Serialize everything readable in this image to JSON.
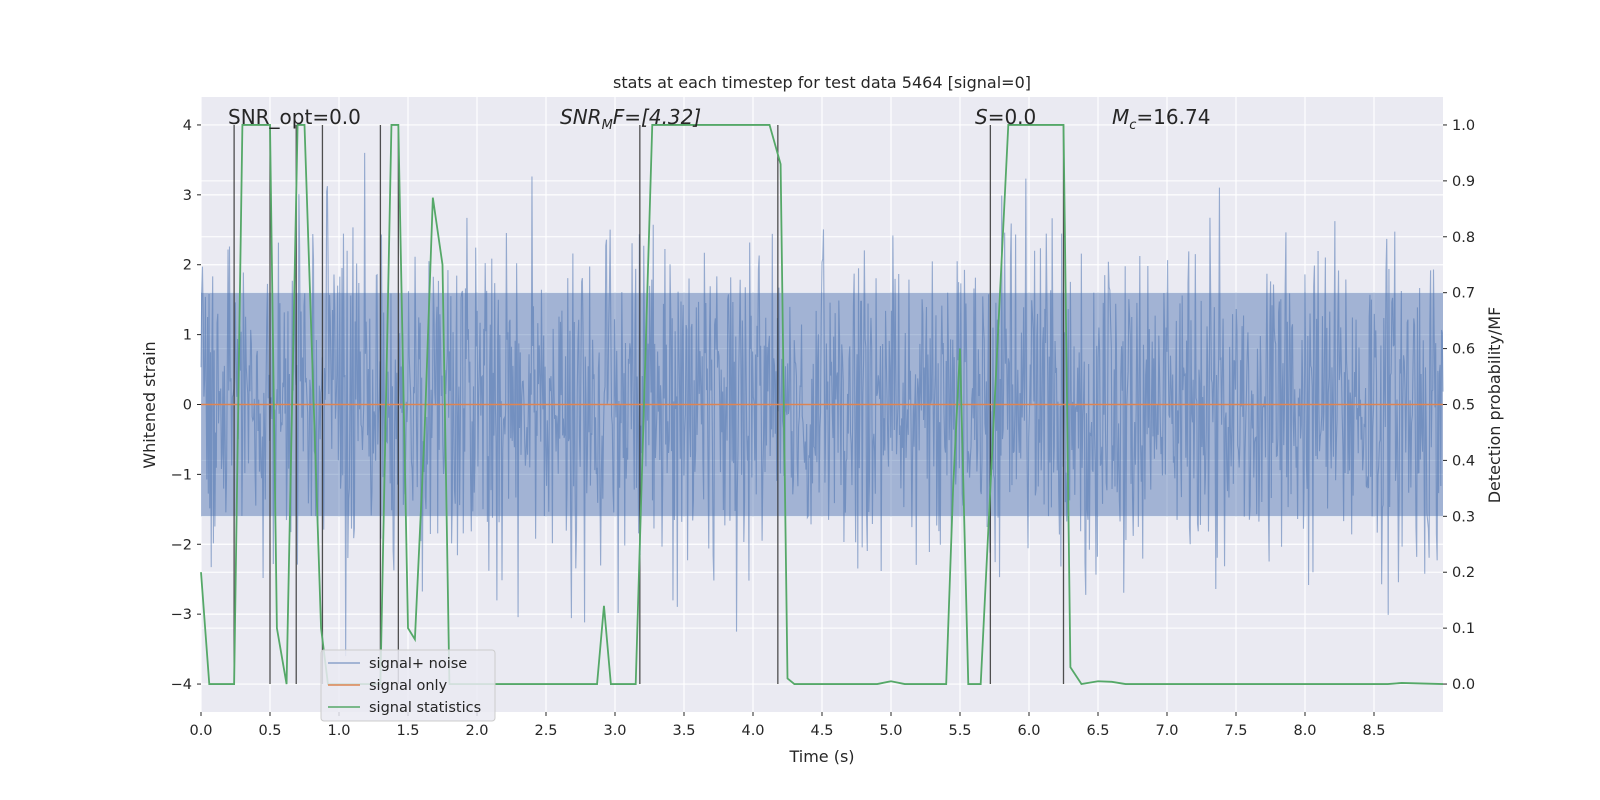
{
  "chart_data": {
    "type": "line",
    "title": "stats at each timestep for test data 5464 [signal=0]",
    "xlabel": "Time (s)",
    "ylabel": "Whitened strain",
    "y2label": "Detection probability/MF",
    "xlim": [
      0,
      9
    ],
    "ylim": [
      -4.4,
      4.4
    ],
    "y2lim": [
      -0.05,
      1.05
    ],
    "xticks": [
      "0.0",
      "0.5",
      "1.0",
      "1.5",
      "2.0",
      "2.5",
      "3.0",
      "3.5",
      "4.0",
      "4.5",
      "5.0",
      "5.5",
      "6.0",
      "6.5",
      "7.0",
      "7.5",
      "8.0",
      "8.5"
    ],
    "xtick_values": [
      0,
      0.5,
      1,
      1.5,
      2,
      2.5,
      3,
      3.5,
      4,
      4.5,
      5,
      5.5,
      6,
      6.5,
      7,
      7.5,
      8,
      8.5
    ],
    "yticks": [
      "−4",
      "−3",
      "−2",
      "−1",
      "0",
      "1",
      "2",
      "3",
      "4"
    ],
    "ytick_values": [
      -4,
      -3,
      -2,
      -1,
      0,
      1,
      2,
      3,
      4
    ],
    "y2ticks": [
      "0.0",
      "0.1",
      "0.2",
      "0.3",
      "0.4",
      "0.5",
      "0.6",
      "0.7",
      "0.8",
      "0.9",
      "1.0"
    ],
    "y2tick_values": [
      0,
      0.1,
      0.2,
      0.3,
      0.4,
      0.5,
      0.6,
      0.7,
      0.8,
      0.9,
      1.0
    ],
    "annotations": {
      "snr_opt": "SNR_opt=0.0",
      "snr_mf_sym": "SNR",
      "snr_mf_sub": "M",
      "snr_mf_rest": "F=[4.32]",
      "s_sym": "S",
      "s_rest": "=0.0",
      "mc_sym": "M",
      "mc_sub": "c",
      "mc_rest": "=16.74"
    },
    "series": [
      {
        "name": "signal+ noise",
        "color": "#4c72b0",
        "axis": "left",
        "description": "whitened noise, approx. Gaussian, spikes up to about ±3.5",
        "envelope": {
          "core": [
            -1.6,
            1.6
          ],
          "max_spike": 3.6
        }
      },
      {
        "name": "signal only",
        "color": "#dd8452",
        "axis": "left",
        "x": [
          0,
          9
        ],
        "values": [
          0,
          0
        ]
      },
      {
        "name": "signal statistics",
        "color": "#55a868",
        "axis": "right",
        "x": [
          0.0,
          0.06,
          0.2,
          0.24,
          0.3,
          0.5,
          0.55,
          0.62,
          0.7,
          0.75,
          0.87,
          0.92,
          1.0,
          1.05,
          1.3,
          1.38,
          1.43,
          1.5,
          1.55,
          1.62,
          1.68,
          1.75,
          1.8,
          1.85,
          2.0,
          2.5,
          2.87,
          2.92,
          2.97,
          3.15,
          3.27,
          4.12,
          4.2,
          4.25,
          4.3,
          4.5,
          4.9,
          5.0,
          5.1,
          5.4,
          5.45,
          5.5,
          5.56,
          5.65,
          5.85,
          6.25,
          6.3,
          6.38,
          6.5,
          6.6,
          6.7,
          7.0,
          8.6,
          8.7,
          9.0
        ],
        "values": [
          0.2,
          0.0,
          0.0,
          0.0,
          1.0,
          1.0,
          0.1,
          0.0,
          1.0,
          1.0,
          0.1,
          0.0,
          0.0,
          0.0,
          0.0,
          1.0,
          1.0,
          0.1,
          0.08,
          0.45,
          0.87,
          0.75,
          0.0,
          0.0,
          0.0,
          0.0,
          0.0,
          0.14,
          0.0,
          0.0,
          1.0,
          1.0,
          0.93,
          0.01,
          0.0,
          0.0,
          0.0,
          0.005,
          0.0,
          0.0,
          0.35,
          0.6,
          0.0,
          0.0,
          1.0,
          1.0,
          0.03,
          0.0,
          0.005,
          0.004,
          0.0,
          0.0,
          0.0,
          0.002,
          0.0
        ]
      }
    ],
    "vlines": [
      0.24,
      0.5,
      0.69,
      0.88,
      1.3,
      1.43,
      3.18,
      4.18,
      5.72,
      6.25
    ],
    "vline_color": "#333333",
    "legend_loc": "lower left",
    "background": "#eaeaf2",
    "grid": true
  }
}
